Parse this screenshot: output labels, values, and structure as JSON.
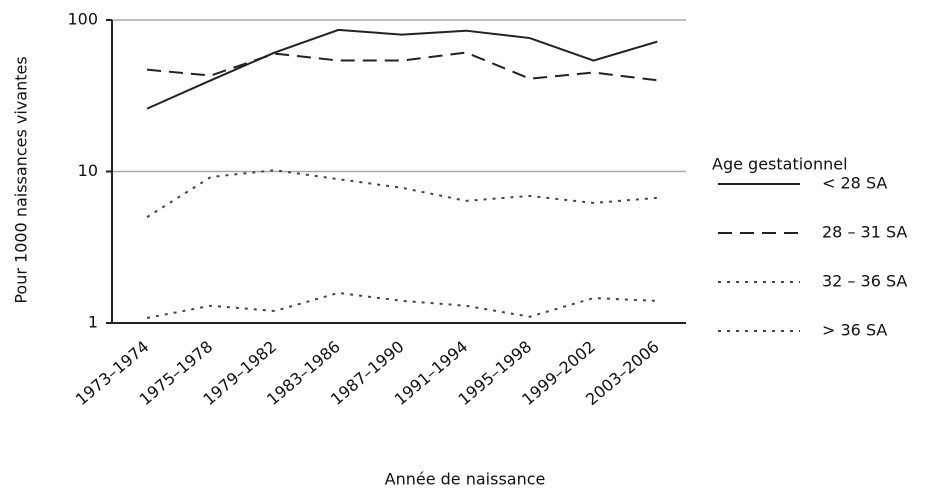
{
  "chart_data": {
    "type": "line",
    "x_label": "Année de naissance",
    "y_label": "Pour 1000 naissances vivantes",
    "categories": [
      "1973–1974",
      "1975–1978",
      "1979–1982",
      "1983–1986",
      "1987–1990",
      "1991–1994",
      "1995–1998",
      "1999–2002",
      "2003–2006"
    ],
    "series": [
      {
        "name": "< 28 SA",
        "color": "#222222",
        "dash": "solid",
        "values": [
          26,
          40,
          61,
          86,
          80,
          85,
          76,
          54,
          72
        ]
      },
      {
        "name": "28 – 31 SA",
        "color": "#222222",
        "dash": "dashed",
        "values": [
          47,
          43,
          60,
          54,
          54,
          61,
          41,
          45,
          40
        ]
      },
      {
        "name": "32 – 36 SA",
        "color": "#444444",
        "dash": "dotted",
        "values": [
          5,
          9.2,
          10.2,
          8.9,
          7.8,
          6.4,
          6.9,
          6.2,
          6.7
        ]
      },
      {
        "name": "> 36 SA",
        "color": "#444444",
        "dash": "dotted",
        "values": [
          1.08,
          1.3,
          1.2,
          1.58,
          1.4,
          1.3,
          1.1,
          1.46,
          1.4
        ]
      }
    ],
    "ylim": [
      1,
      100
    ],
    "yticks": [
      1,
      10,
      100
    ],
    "log_y": true,
    "grid": true,
    "legend_title": "Age gestationnel",
    "legend_position": "right"
  }
}
